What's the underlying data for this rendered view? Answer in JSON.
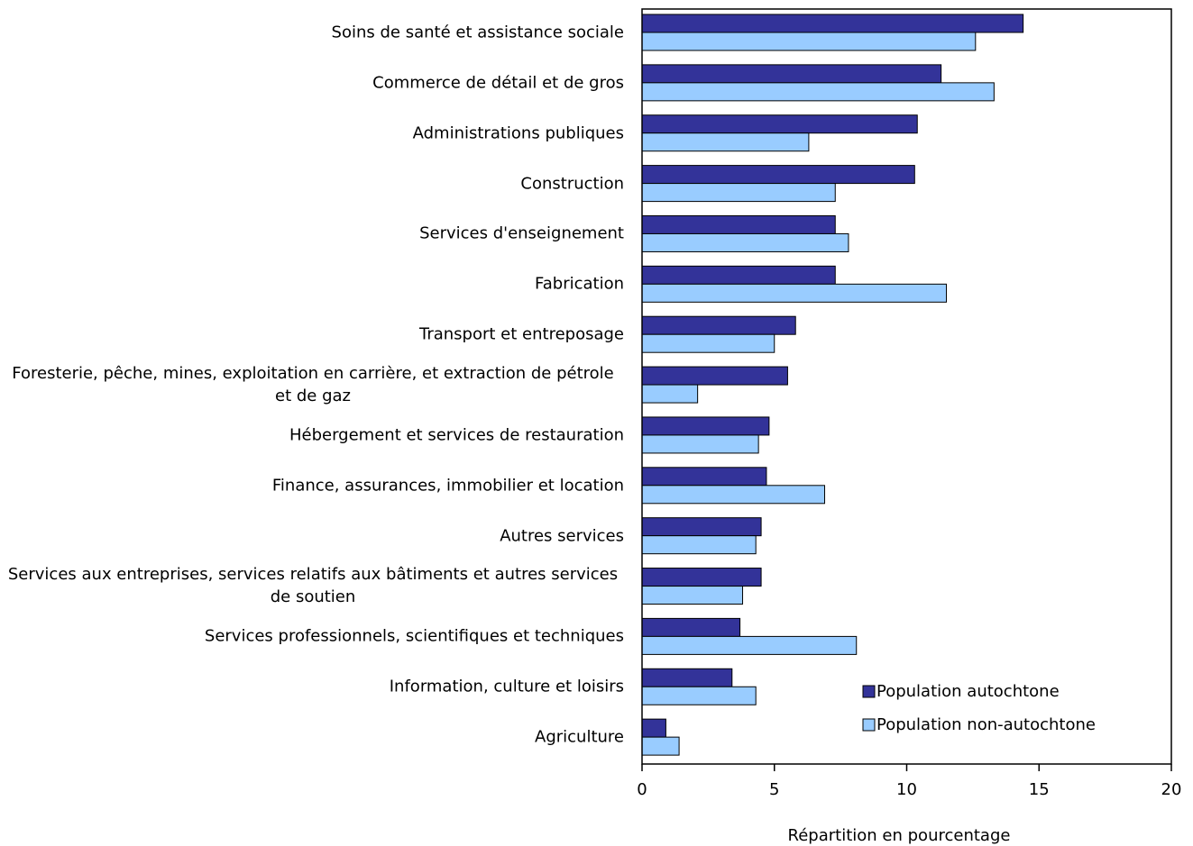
{
  "chart_data": {
    "type": "barh",
    "xlabel": "Répartition en pourcentage",
    "categories": [
      "Soins de santé et assistance sociale",
      "Commerce de détail et de gros",
      "Administrations publiques",
      "Construction",
      "Services d'enseignement",
      "Fabrication",
      "Transport et entreposage",
      "Foresterie, pêche, mines, exploitation en carrière, et extraction de pétrole et de gaz",
      "Hébergement et services de restauration",
      "Finance, assurances, immobilier et location",
      "Autres services",
      "Services aux entreprises, services relatifs aux bâtiments et autres services de soutien",
      "Services professionnels, scientifiques et techniques",
      "Information, culture et loisirs",
      "Agriculture"
    ],
    "series": [
      {
        "name": "Population autochtone",
        "color": "#333399",
        "values": [
          14.4,
          11.3,
          10.4,
          10.3,
          7.3,
          7.3,
          5.8,
          5.5,
          4.8,
          4.7,
          4.5,
          4.5,
          3.7,
          3.4,
          0.9
        ]
      },
      {
        "name": "Population non-autochtone",
        "color": "#99ccff",
        "values": [
          12.6,
          13.3,
          6.3,
          7.3,
          7.8,
          11.5,
          5.0,
          2.1,
          4.4,
          6.9,
          4.3,
          3.8,
          8.1,
          4.3,
          1.4
        ]
      }
    ],
    "xlim": [
      0,
      20
    ],
    "xticks": [
      0,
      5,
      10,
      15,
      20
    ],
    "legend": "bottom-right"
  }
}
